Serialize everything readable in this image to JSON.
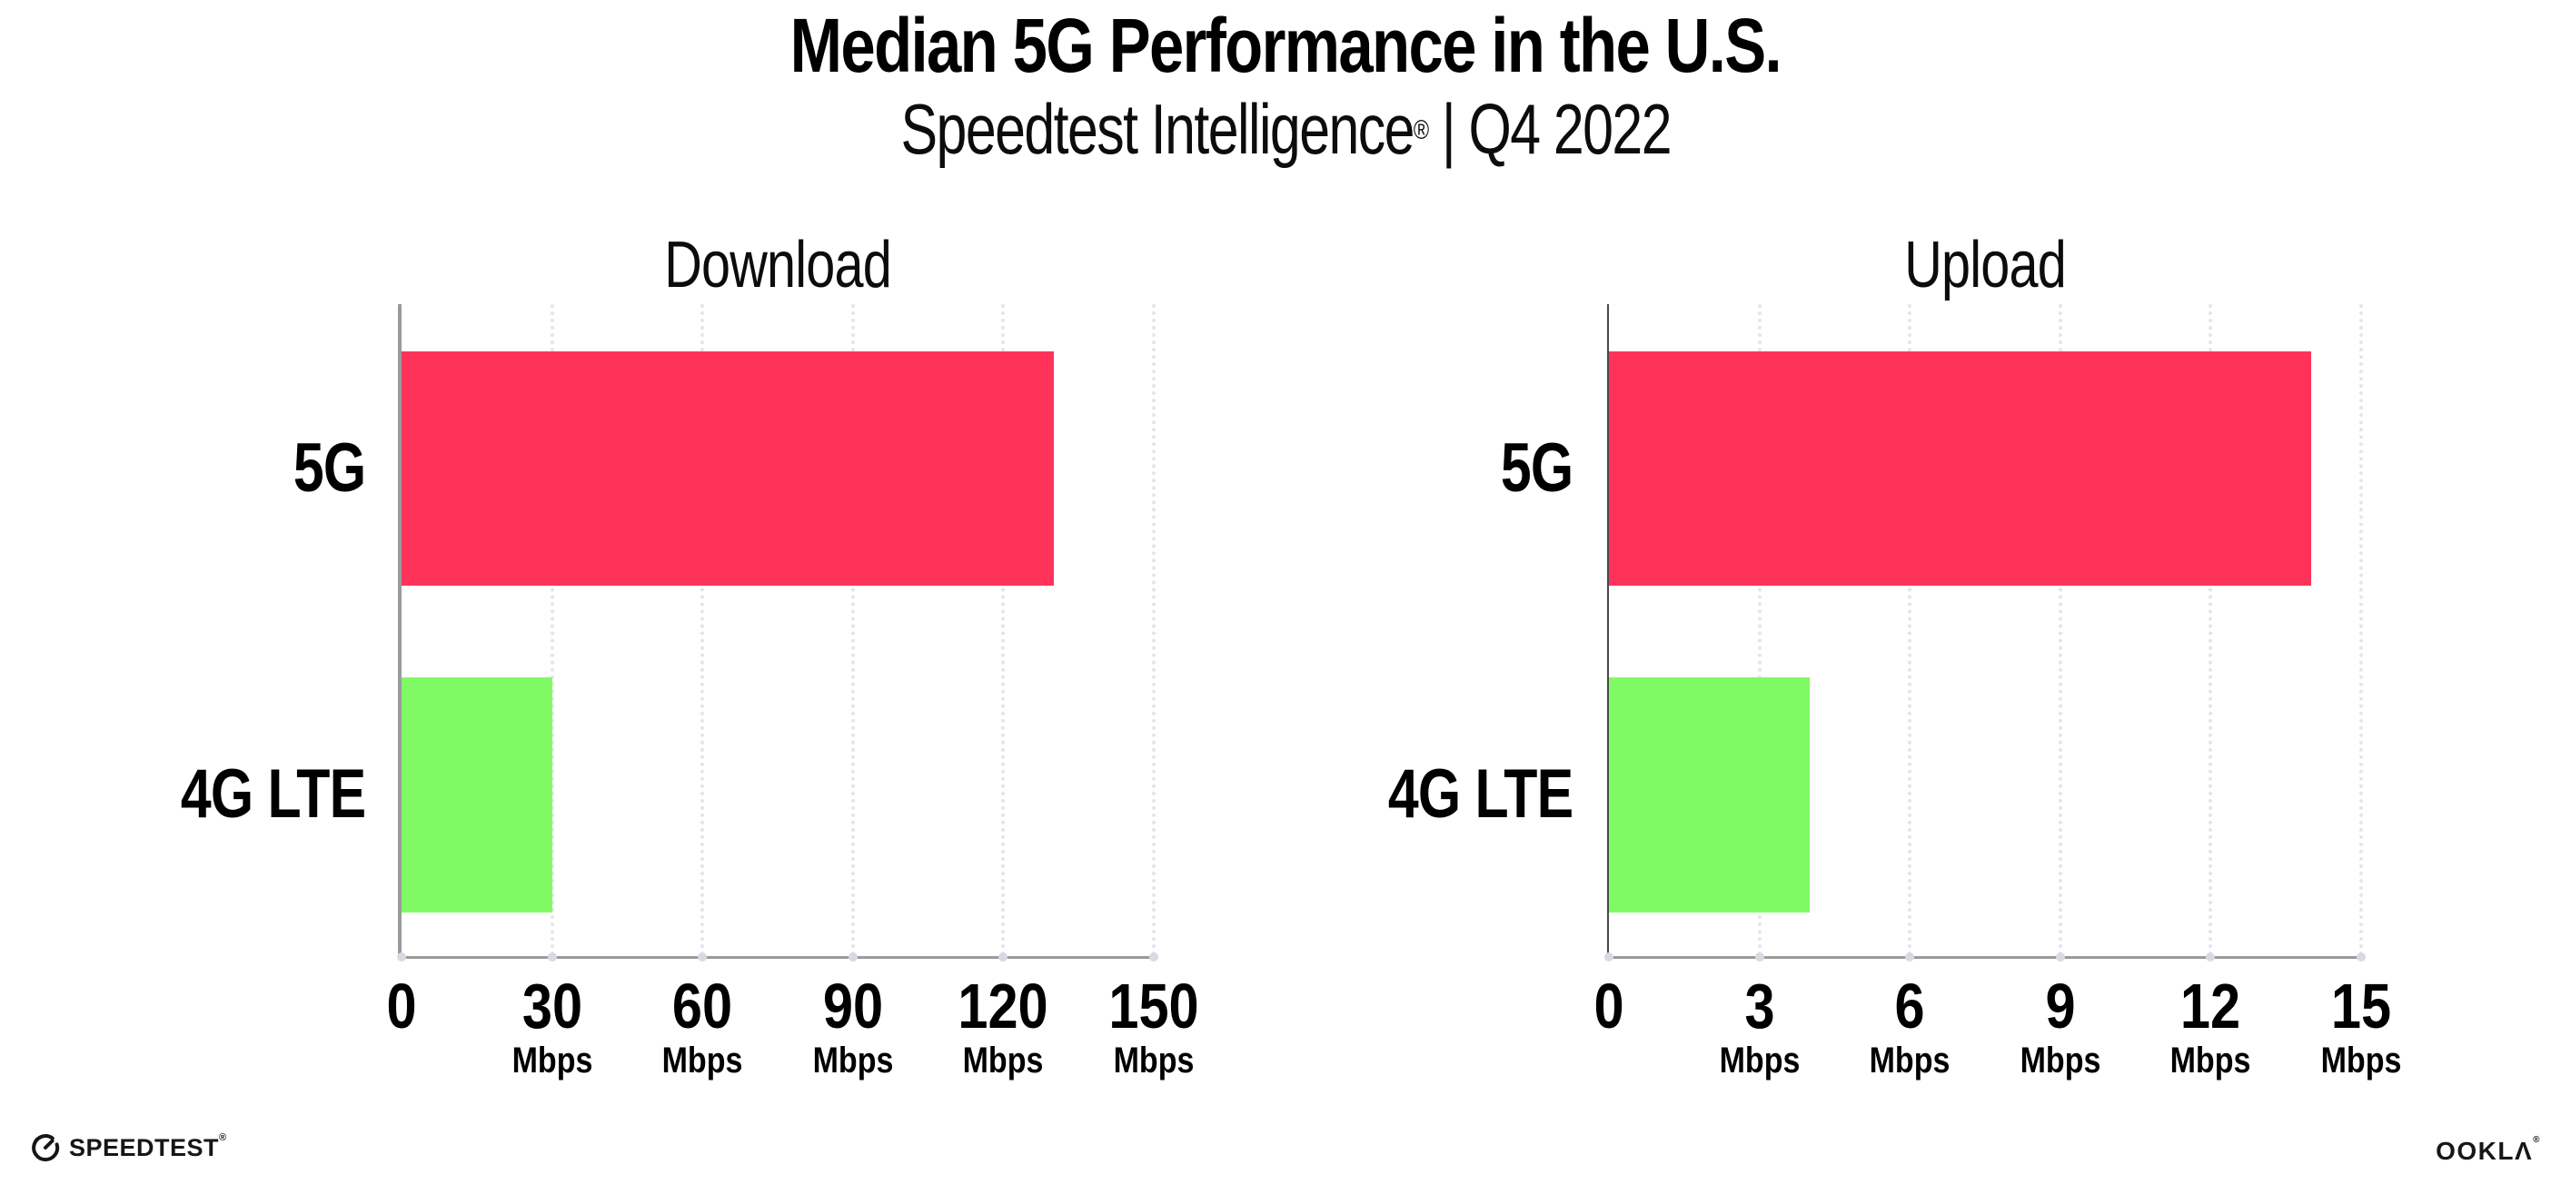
{
  "header": {
    "title": "Median 5G Performance in the U.S.",
    "subtitle_brand": "Speedtest Intelligence",
    "subtitle_reg": "®",
    "subtitle_rest": " | Q4 2022"
  },
  "footer": {
    "speedtest_label": "SPEEDTEST",
    "speedtest_mark": "®",
    "speedtest_icon": "gauge-icon",
    "ookla_label": "OOKLΛ",
    "ookla_mark": "®"
  },
  "colors": {
    "bar_5g": "#ff3359",
    "bar_4g_lte": "#80fa64",
    "gridline": "#e4e4ee",
    "axis": "#9b9b9b",
    "axis_dark": "#47474d",
    "tick_dot": "#d9d9e3",
    "text": "#000000"
  },
  "chart_data": [
    {
      "type": "bar",
      "orientation": "horizontal",
      "title": "Download",
      "categories": [
        "5G",
        "4G LTE"
      ],
      "values": [
        130,
        30
      ],
      "unit": "Mbps",
      "xlim": [
        0,
        150
      ],
      "ticks": [
        0,
        30,
        60,
        90,
        120,
        150
      ],
      "bar_colors": [
        "#ff3359",
        "#80fa64"
      ],
      "grid": "dotted-vertical",
      "legend": "none"
    },
    {
      "type": "bar",
      "orientation": "horizontal",
      "title": "Upload",
      "categories": [
        "5G",
        "4G LTE"
      ],
      "values": [
        14,
        4
      ],
      "unit": "Mbps",
      "xlim": [
        0,
        15
      ],
      "ticks": [
        0,
        3,
        6,
        9,
        12,
        15
      ],
      "bar_colors": [
        "#ff3359",
        "#80fa64"
      ],
      "grid": "dotted-vertical",
      "legend": "none"
    }
  ]
}
